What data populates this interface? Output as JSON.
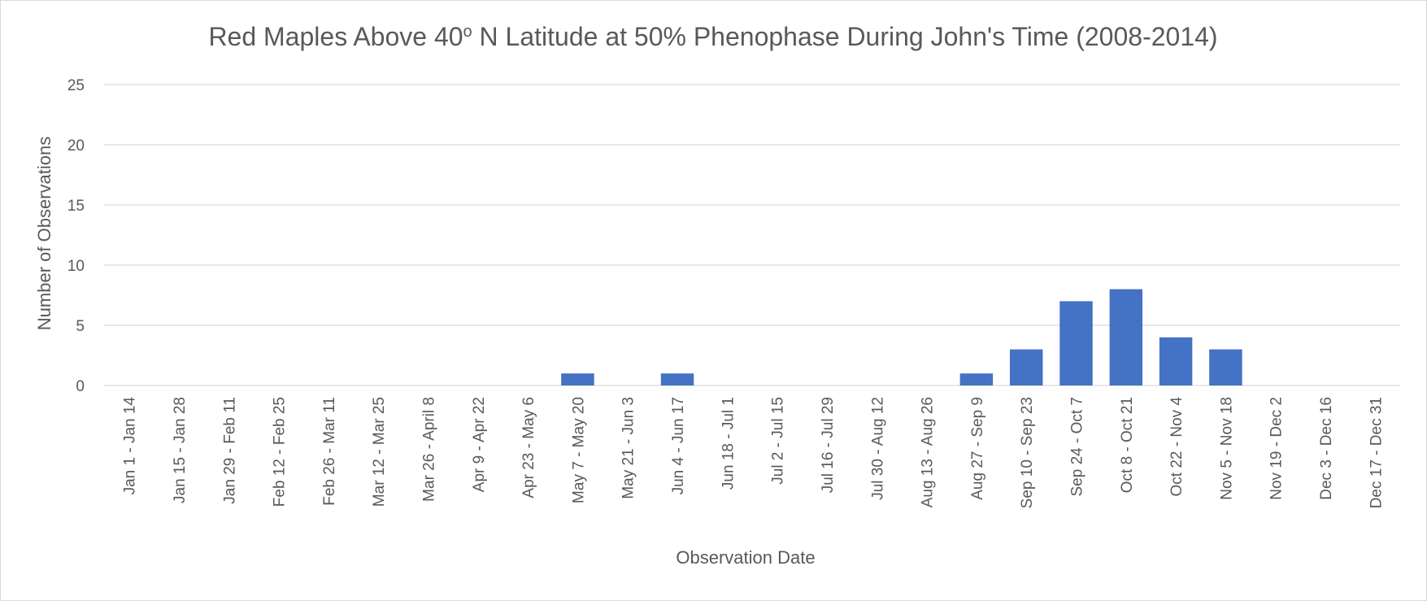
{
  "chart_data": {
    "type": "bar",
    "title": "Red Maples Above 40",
    "title_superscript": "o",
    "title_rest": " N Latitude at 50% Phenophase During John's Time (2008-2014)",
    "xlabel": "Observation Date",
    "ylabel": "Number of Observations",
    "ylim": [
      0,
      25
    ],
    "yticks": [
      0,
      5,
      10,
      15,
      20,
      25
    ],
    "grid": true,
    "legend": "none",
    "bar_color": "#4472C4",
    "categories": [
      "Jan 1 - Jan 14",
      "Jan 15 - Jan 28",
      "Jan 29 - Feb 11",
      "Feb 12 - Feb 25",
      "Feb 26 - Mar 11",
      "Mar 12 - Mar 25",
      "Mar 26 - April 8",
      "Apr 9 - Apr 22",
      "Apr 23 - May 6",
      "May 7 - May 20",
      "May 21 - Jun 3",
      "Jun 4 - Jun 17",
      "Jun 18 - Jul 1",
      "Jul 2 - Jul 15",
      "Jul 16 - Jul 29",
      "Jul 30 - Aug 12",
      "Aug 13 - Aug 26",
      "Aug 27 - Sep 9",
      "Sep 10 - Sep 23",
      "Sep 24 - Oct 7",
      "Oct 8 - Oct 21",
      "Oct 22 - Nov 4",
      "Nov 5 - Nov 18",
      "Nov 19 - Dec 2",
      "Dec 3 - Dec 16",
      "Dec 17 - Dec 31"
    ],
    "values": [
      0,
      0,
      0,
      0,
      0,
      0,
      0,
      0,
      0,
      1,
      0,
      1,
      0,
      0,
      0,
      0,
      0,
      1,
      3,
      7,
      8,
      4,
      3,
      0,
      0,
      0
    ]
  }
}
